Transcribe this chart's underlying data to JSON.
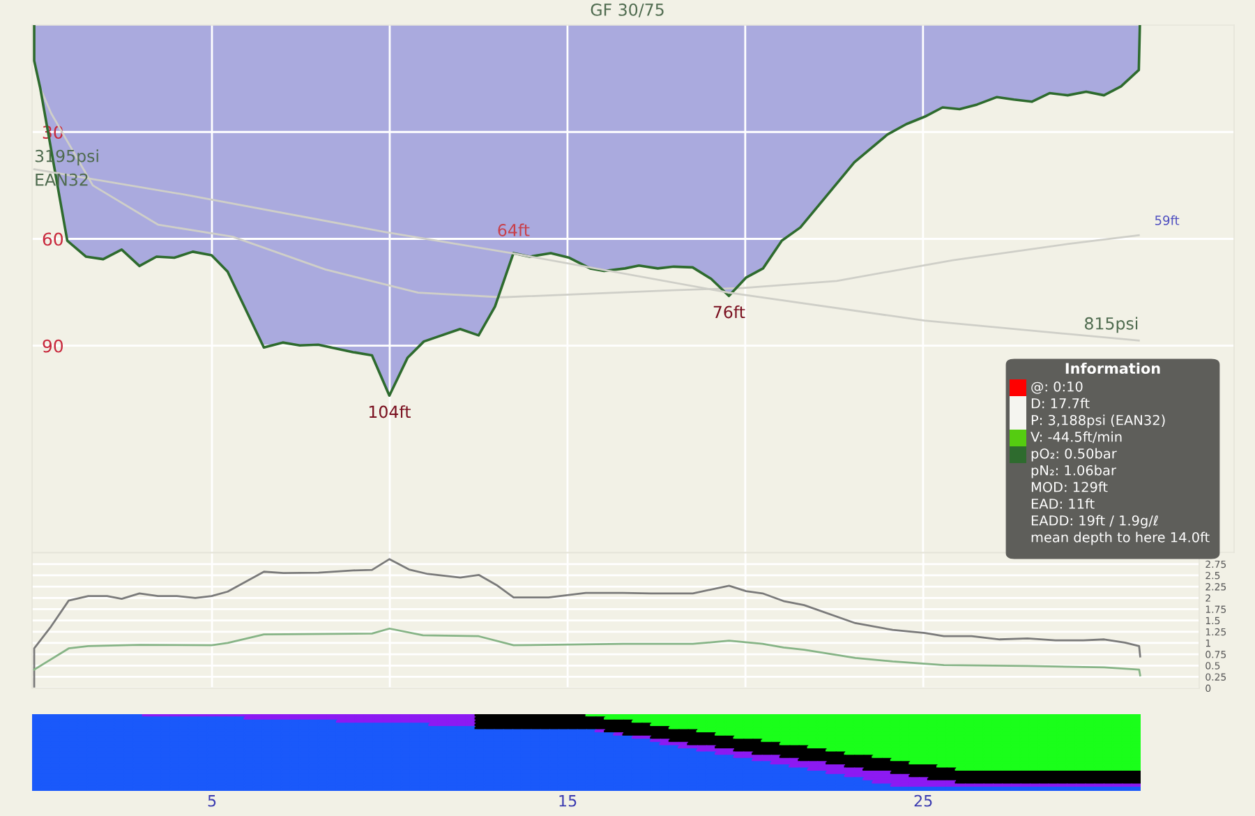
{
  "chart_data": [
    {
      "type": "area",
      "title": "GF 30/75",
      "xlim": [
        -0.06,
        33.75
      ],
      "ylim": [
        148,
        0
      ],
      "xticks": [
        5,
        10,
        15,
        20,
        25
      ],
      "yticks": [
        30,
        60,
        90
      ],
      "y2lim": [
        -2127,
        5198
      ],
      "grid": true,
      "tick_labels": "y",
      "series": [
        {
          "type": "area",
          "color": "#aaaade",
          "x": [
            0,
            0,
            0.17,
            0.93,
            1.46,
            1.94,
            2.46,
            2.96,
            3.44,
            3.94,
            4.46,
            4.99,
            5.44,
            6.46,
            6.99,
            7.47,
            7.99,
            8.97,
            9.5,
            9.99,
            10.5,
            10.96,
            11.98,
            12.5,
            12.96,
            13.48,
            13.94,
            14.53,
            15.05,
            15.64,
            16.03,
            16.62,
            17.01,
            17.54,
            17.99,
            18.52,
            19.04,
            19.54,
            20.02,
            20.5,
            21.03,
            21.55,
            23.07,
            24.0,
            24.53,
            25.05,
            25.55,
            26.03,
            26.52,
            27.08,
            27.56,
            28.06,
            28.56,
            29.07,
            29.59,
            30.09,
            30.57,
            31.07,
            31.1
          ],
          "values": [
            0,
            10,
            17.7,
            60.5,
            65,
            65.7,
            63,
            67.6,
            65,
            65.3,
            63.6,
            64.6,
            69.2,
            90.5,
            89.1,
            89.9,
            89.7,
            91.8,
            92.7,
            104,
            93.4,
            88.8,
            85.3,
            87.1,
            79,
            64,
            65,
            64,
            65.3,
            68.3,
            69,
            68.3,
            67.5,
            68.3,
            67.8,
            68,
            71.2,
            76,
            70.9,
            68.3,
            60.5,
            56.8,
            38.5,
            30.7,
            27.8,
            25.7,
            23.1,
            23.6,
            22.3,
            20.2,
            20.9,
            21.5,
            19.1,
            19.7,
            18.7,
            19.7,
            17.2,
            12.6,
            0
          ],
          "value_labels": [
            null,
            null,
            null,
            null,
            null,
            null,
            null,
            null,
            null,
            null,
            null,
            null,
            null,
            null,
            null,
            null,
            null,
            null,
            null,
            "104ft",
            null,
            null,
            null,
            null,
            null,
            "64ft",
            null,
            null,
            null,
            null,
            null,
            null,
            null,
            null,
            null,
            null,
            null,
            "76ft",
            null,
            null,
            null,
            null,
            null,
            null,
            null,
            null,
            null,
            null,
            null,
            null,
            null,
            null,
            null,
            null,
            null,
            null,
            null,
            null,
            null
          ]
        },
        {
          "type": "line",
          "color": "#cfcfc8",
          "x": [
            0.17,
            0.48,
            1.65,
            3.48,
            5.58,
            8.19,
            10.8,
            13.16,
            17.99,
            19.95,
            22.57,
            25.84,
            29.1,
            31.07
          ],
          "values": [
            17.7,
            24.8,
            45,
            56,
            59.4,
            68.6,
            75.1,
            76.4,
            74.4,
            73.8,
            71.8,
            66,
            61.4,
            59
          ],
          "value_labels": [
            null,
            null,
            null,
            null,
            null,
            null,
            null,
            null,
            null,
            null,
            null,
            null,
            null,
            "59ft"
          ]
        },
        {
          "type": "line",
          "axis": "y2",
          "color": "#cfcfc8",
          "x": [
            0,
            4.27,
            9.89,
            13.42,
            19.54,
            25.04,
            31.07
          ],
          "values": [
            3195,
            2840,
            2322,
            2030,
            1481,
            1093,
            815
          ],
          "value_labels": [
            "3195psi",
            null,
            null,
            null,
            null,
            null,
            "815psi"
          ]
        }
      ],
      "annotations": [
        "EAN32",
        "Information",
        "@: 0:10",
        "D: 17.7ft",
        "P: 3,188psi (EAN32)",
        "V: -44.5ft/min",
        "pO₂: 0.50bar",
        "pN₂: 1.06bar",
        "MOD: 129ft",
        "EAD: 11ft",
        "EADD: 19ft / 1.9g/ℓ",
        "mean depth to here 14.0ft"
      ]
    },
    {
      "type": "line",
      "xlim": [
        -0.06,
        32.76
      ],
      "y2lim": [
        0,
        3
      ],
      "xticks": [
        5,
        {
          "value": 10,
          "label": null
        },
        15,
        {
          "value": 20,
          "label": null
        },
        25
      ],
      "y2ticks": [
        0,
        0.25,
        0.5,
        0.75,
        1,
        1.25,
        1.5,
        1.75,
        2,
        2.25,
        2.5,
        2.75
      ],
      "grid": true,
      "series": [
        {
          "axis": "y2",
          "color": "#7a7a7a",
          "x": [
            0,
            0,
            0.45,
            0.97,
            1.52,
            2.05,
            2.46,
            2.96,
            3.48,
            4.01,
            4.53,
            4.99,
            5.44,
            6.46,
            7.01,
            7.99,
            8.97,
            9.5,
            9.99,
            10.54,
            11.07,
            11.98,
            12.5,
            13.03,
            13.48,
            14.46,
            15.51,
            16.56,
            17.34,
            18.52,
            19.54,
            20.02,
            20.48,
            21.07,
            21.65,
            23.09,
            24.14,
            25.05,
            25.58,
            26.36,
            27.15,
            27.93,
            28.72,
            29.5,
            30.09,
            30.67,
            31.07,
            31.1
          ],
          "values": [
            0,
            0.88,
            1.34,
            1.94,
            2.04,
            2.04,
            1.98,
            2.1,
            2.04,
            2.04,
            2.0,
            2.04,
            2.14,
            2.58,
            2.55,
            2.56,
            2.61,
            2.62,
            2.86,
            2.63,
            2.53,
            2.45,
            2.51,
            2.27,
            2.01,
            2.01,
            2.11,
            2.11,
            2.1,
            2.1,
            2.27,
            2.15,
            2.1,
            1.93,
            1.84,
            1.44,
            1.29,
            1.22,
            1.15,
            1.15,
            1.08,
            1.1,
            1.06,
            1.06,
            1.08,
            1.01,
            0.93,
            0.7
          ]
        },
        {
          "axis": "y2",
          "color": "#86b486",
          "x": [
            0,
            0.97,
            1.52,
            2.96,
            4.99,
            5.44,
            6.46,
            9.5,
            9.99,
            10.93,
            12.5,
            13.48,
            16.56,
            18.52,
            19.54,
            20.48,
            21.07,
            21.65,
            23.09,
            24.14,
            25.58,
            27.93,
            30.09,
            31.07,
            31.1
          ],
          "values": [
            0.41,
            0.88,
            0.93,
            0.96,
            0.95,
            1.0,
            1.19,
            1.21,
            1.32,
            1.17,
            1.15,
            0.95,
            0.98,
            0.98,
            1.05,
            0.98,
            0.9,
            0.85,
            0.67,
            0.59,
            0.51,
            0.49,
            0.46,
            0.41,
            0.28
          ]
        }
      ]
    }
  ]
}
